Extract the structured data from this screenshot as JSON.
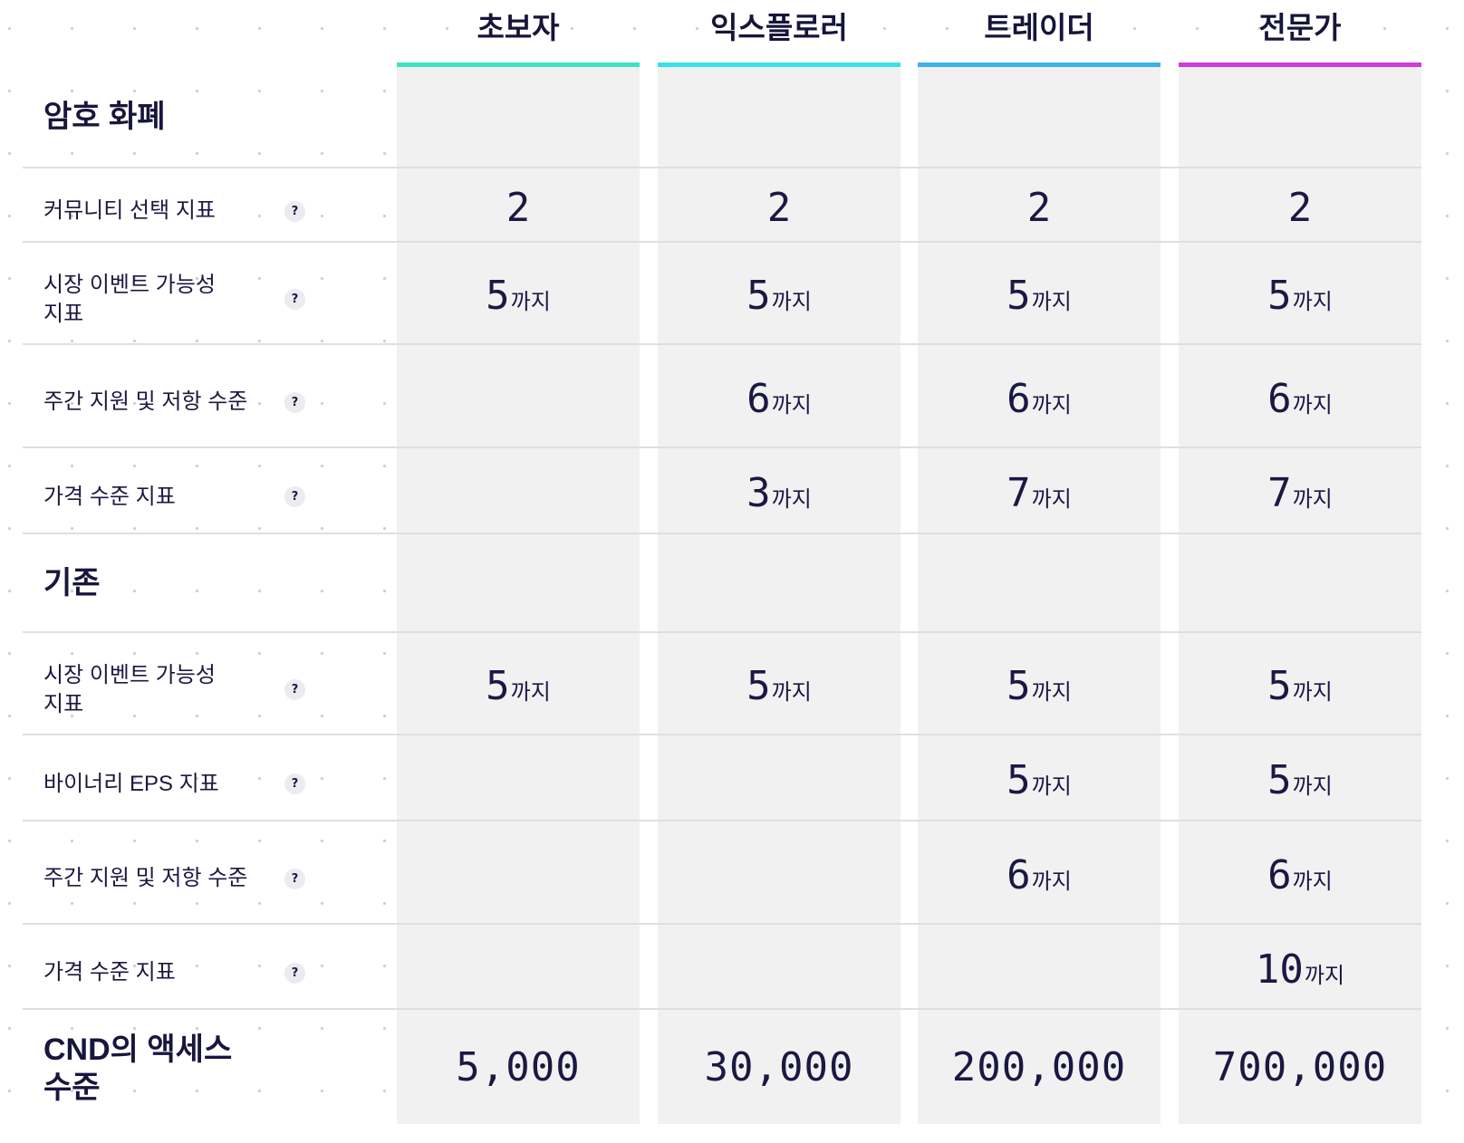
{
  "header": {
    "columns": [
      {
        "name": "초보자",
        "accent": "#3fe2c4"
      },
      {
        "name": "익스플로러",
        "accent": "#3ae1ea"
      },
      {
        "name": "트레이더",
        "accent": "#3cb2ea"
      },
      {
        "name": "전문가",
        "accent": "#cf3bdc"
      }
    ]
  },
  "help_icon": {
    "glyph": "?",
    "icon": "help-icon"
  },
  "sections": [
    {
      "title": "암호 화폐",
      "rows": [
        {
          "label": "커뮤니티 선택 지표",
          "values": [
            {
              "num": "2"
            },
            {
              "num": "2"
            },
            {
              "num": "2"
            },
            {
              "num": "2"
            }
          ]
        },
        {
          "label": "시장 이벤트 가능성 지표",
          "values": [
            {
              "num": "5",
              "suffix": "까지"
            },
            {
              "num": "5",
              "suffix": "까지"
            },
            {
              "num": "5",
              "suffix": "까지"
            },
            {
              "num": "5",
              "suffix": "까지"
            }
          ]
        },
        {
          "label": "주간 지원 및 저항 수준",
          "values": [
            null,
            {
              "num": "6",
              "suffix": "까지"
            },
            {
              "num": "6",
              "suffix": "까지"
            },
            {
              "num": "6",
              "suffix": "까지"
            }
          ]
        },
        {
          "label": "가격 수준 지표",
          "values": [
            null,
            {
              "num": "3",
              "suffix": "까지"
            },
            {
              "num": "7",
              "suffix": "까지"
            },
            {
              "num": "7",
              "suffix": "까지"
            }
          ]
        }
      ]
    },
    {
      "title": "기존",
      "rows": [
        {
          "label": "시장 이벤트 가능성 지표",
          "values": [
            {
              "num": "5",
              "suffix": "까지"
            },
            {
              "num": "5",
              "suffix": "까지"
            },
            {
              "num": "5",
              "suffix": "까지"
            },
            {
              "num": "5",
              "suffix": "까지"
            }
          ]
        },
        {
          "label": "바이너리 EPS 지표",
          "values": [
            null,
            null,
            {
              "num": "5",
              "suffix": "까지"
            },
            {
              "num": "5",
              "suffix": "까지"
            }
          ]
        },
        {
          "label": "주간 지원 및 저항 수준",
          "values": [
            null,
            null,
            {
              "num": "6",
              "suffix": "까지"
            },
            {
              "num": "6",
              "suffix": "까지"
            }
          ]
        },
        {
          "label": "가격 수준 지표",
          "values": [
            null,
            null,
            null,
            {
              "num": "10",
              "suffix": "까지"
            }
          ]
        }
      ]
    }
  ],
  "access": {
    "label": "CND의 액세스 수준",
    "values": [
      "5,000",
      "30,000",
      "200,000",
      "700,000"
    ]
  }
}
